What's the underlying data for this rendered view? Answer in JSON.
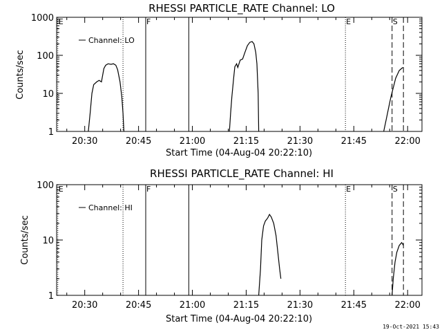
{
  "footer": {
    "timestamp": "19-Oct-2021 15:43"
  },
  "chart_data": [
    {
      "type": "line",
      "title": "RHESSI PARTICLE_RATE Channel: LO",
      "xlabel": "Start Time (04-Aug-04 20:22:10)",
      "ylabel": "Counts/sec",
      "yscale": "log",
      "ylim": [
        1,
        1000
      ],
      "xlim": [
        "20:22:10",
        "22:04:00"
      ],
      "x_ticks": [
        "20:30",
        "20:45",
        "21:00",
        "21:15",
        "21:30",
        "21:45",
        "22:00"
      ],
      "y_ticks": [
        "1",
        "10",
        "100",
        "1000"
      ],
      "grid": false,
      "legend_position": "top-left",
      "markers": [
        {
          "label": "E",
          "time": "20:22:30",
          "style": "dotted"
        },
        {
          "label": "",
          "time": "20:40:40",
          "style": "dotted"
        },
        {
          "label": "F",
          "time": "20:47:00",
          "style": "solid"
        },
        {
          "label": "",
          "time": "20:59:00",
          "style": "solid"
        },
        {
          "label": "E",
          "time": "21:42:40",
          "style": "dotted"
        },
        {
          "label": "S",
          "time": "21:55:40",
          "style": "dashed"
        },
        {
          "label": "",
          "time": "21:58:50",
          "style": "dashed"
        }
      ],
      "series": [
        {
          "name": "Channel: LO",
          "segments": [
            [
              [
                "20:31:00",
                1
              ],
              [
                "20:31:30",
                3
              ],
              [
                "20:32:00",
                10
              ],
              [
                "20:32:30",
                17
              ],
              [
                "20:33:20",
                20
              ],
              [
                "20:34:00",
                22
              ],
              [
                "20:34:40",
                20
              ],
              [
                "20:35:20",
                45
              ],
              [
                "20:35:50",
                55
              ],
              [
                "20:36:30",
                60
              ],
              [
                "20:37:20",
                58
              ],
              [
                "20:38:00",
                60
              ],
              [
                "20:38:40",
                55
              ],
              [
                "20:39:10",
                42
              ],
              [
                "20:39:50",
                20
              ],
              [
                "20:40:20",
                8
              ],
              [
                "20:40:40",
                3
              ],
              [
                "20:40:55",
                1
              ]
            ],
            [
              [
                "21:10:20",
                1
              ],
              [
                "21:10:40",
                3
              ],
              [
                "21:11:00",
                8
              ],
              [
                "21:11:30",
                25
              ],
              [
                "21:11:50",
                50
              ],
              [
                "21:12:20",
                60
              ],
              [
                "21:12:40",
                48
              ],
              [
                "21:13:20",
                75
              ],
              [
                "21:14:00",
                80
              ],
              [
                "21:14:40",
                120
              ],
              [
                "21:15:20",
                180
              ],
              [
                "21:16:00",
                220
              ],
              [
                "21:16:40",
                230
              ],
              [
                "21:17:10",
                200
              ],
              [
                "21:17:40",
                120
              ],
              [
                "21:18:00",
                60
              ],
              [
                "21:18:20",
                10
              ],
              [
                "21:18:30",
                1
              ]
            ],
            [
              [
                "21:53:20",
                1
              ],
              [
                "21:54:00",
                2
              ],
              [
                "21:54:40",
                4
              ],
              [
                "21:55:20",
                8
              ],
              [
                "21:56:00",
                14
              ],
              [
                "21:56:40",
                25
              ],
              [
                "21:57:40",
                40
              ],
              [
                "21:58:40",
                48
              ]
            ]
          ]
        }
      ]
    },
    {
      "type": "line",
      "title": "RHESSI PARTICLE_RATE Channel: HI",
      "xlabel": "Start Time (04-Aug-04 20:22:10)",
      "ylabel": "Counts/sec",
      "yscale": "log",
      "ylim": [
        1,
        100
      ],
      "xlim": [
        "20:22:10",
        "22:04:00"
      ],
      "x_ticks": [
        "20:30",
        "20:45",
        "21:00",
        "21:15",
        "21:30",
        "21:45",
        "22:00"
      ],
      "y_ticks": [
        "1",
        "10",
        "100"
      ],
      "grid": false,
      "legend_position": "top-left",
      "markers": [
        {
          "label": "E",
          "time": "20:22:30",
          "style": "dotted"
        },
        {
          "label": "",
          "time": "20:40:40",
          "style": "dotted"
        },
        {
          "label": "F",
          "time": "20:47:00",
          "style": "solid"
        },
        {
          "label": "",
          "time": "20:59:00",
          "style": "solid"
        },
        {
          "label": "E",
          "time": "21:42:40",
          "style": "dotted"
        },
        {
          "label": "S",
          "time": "21:55:40",
          "style": "dashed"
        },
        {
          "label": "",
          "time": "21:58:50",
          "style": "dashed"
        }
      ],
      "series": [
        {
          "name": "Channel: HI",
          "segments": [
            [
              [
                "21:18:30",
                1
              ],
              [
                "21:19:00",
                3
              ],
              [
                "21:19:20",
                10
              ],
              [
                "21:19:50",
                18
              ],
              [
                "21:20:20",
                22
              ],
              [
                "21:21:00",
                25
              ],
              [
                "21:21:30",
                29
              ],
              [
                "21:22:00",
                26
              ],
              [
                "21:22:40",
                20
              ],
              [
                "21:23:20",
                12
              ],
              [
                "21:23:50",
                6
              ],
              [
                "21:24:20",
                3
              ],
              [
                "21:24:40",
                2
              ]
            ],
            [
              [
                "21:55:40",
                1
              ],
              [
                "21:56:00",
                2
              ],
              [
                "21:56:30",
                4
              ],
              [
                "21:57:00",
                6
              ],
              [
                "21:57:40",
                8
              ],
              [
                "21:58:20",
                9
              ],
              [
                "21:58:50",
                8
              ]
            ]
          ]
        }
      ]
    }
  ]
}
